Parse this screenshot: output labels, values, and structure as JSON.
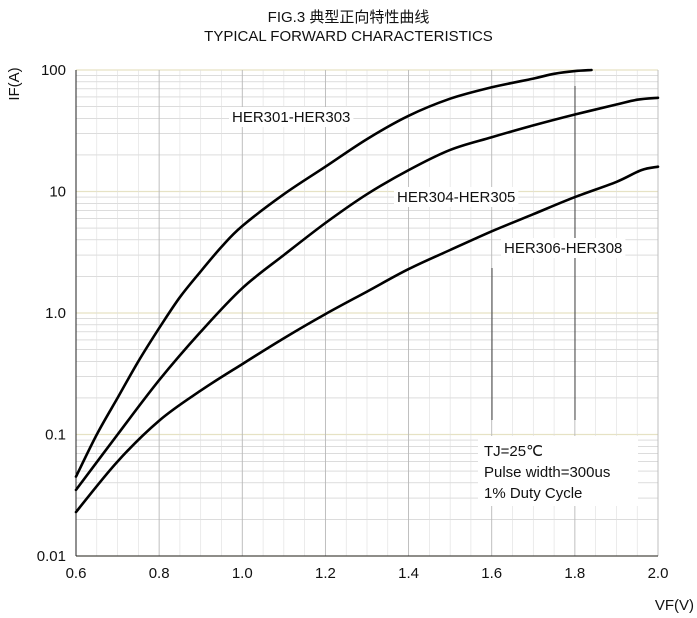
{
  "chart_data": {
    "type": "line",
    "title": "FIG.3  典型正向特性曲线",
    "subtitle": "TYPICAL FORWARD CHARACTERISTICS",
    "xlabel": "VF(V)",
    "ylabel": "IF(A)",
    "xlim": [
      0.6,
      2.0
    ],
    "ylim": [
      0.01,
      100
    ],
    "yscale": "log",
    "grid": true,
    "x_ticks": [
      "0.6",
      "0.8",
      "1.0",
      "1.2",
      "1.4",
      "1.6",
      "1.8",
      "2.0"
    ],
    "y_ticks": [
      "0.01",
      "0.1",
      "1.0",
      "10",
      "100"
    ],
    "series": [
      {
        "name": "HER301-HER303",
        "x": [
          0.6,
          0.65,
          0.7,
          0.75,
          0.8,
          0.85,
          0.9,
          0.95,
          1.0,
          1.1,
          1.2,
          1.3,
          1.4,
          1.5,
          1.6,
          1.7,
          1.75,
          1.8,
          1.84
        ],
        "y": [
          0.045,
          0.1,
          0.2,
          0.4,
          0.75,
          1.35,
          2.2,
          3.5,
          5.2,
          9.5,
          16,
          27,
          42,
          58,
          72,
          85,
          93,
          98,
          100
        ]
      },
      {
        "name": "HER304-HER305",
        "x": [
          0.6,
          0.7,
          0.8,
          0.9,
          1.0,
          1.1,
          1.2,
          1.3,
          1.4,
          1.5,
          1.6,
          1.7,
          1.8,
          1.9,
          1.95,
          2.0
        ],
        "y": [
          0.035,
          0.1,
          0.28,
          0.7,
          1.6,
          3.0,
          5.5,
          9.5,
          15,
          22,
          28,
          35,
          43,
          52,
          57,
          59
        ]
      },
      {
        "name": "HER306-HER308",
        "x": [
          0.6,
          0.7,
          0.8,
          0.9,
          1.0,
          1.1,
          1.2,
          1.3,
          1.4,
          1.5,
          1.6,
          1.7,
          1.8,
          1.9,
          1.96,
          2.0
        ],
        "y": [
          0.023,
          0.06,
          0.13,
          0.23,
          0.38,
          0.62,
          0.98,
          1.5,
          2.3,
          3.3,
          4.7,
          6.5,
          9,
          12,
          15,
          16
        ]
      }
    ],
    "annotations": [
      "TJ=25℃",
      "Pulse width=300us",
      "1% Duty Cycle"
    ]
  }
}
